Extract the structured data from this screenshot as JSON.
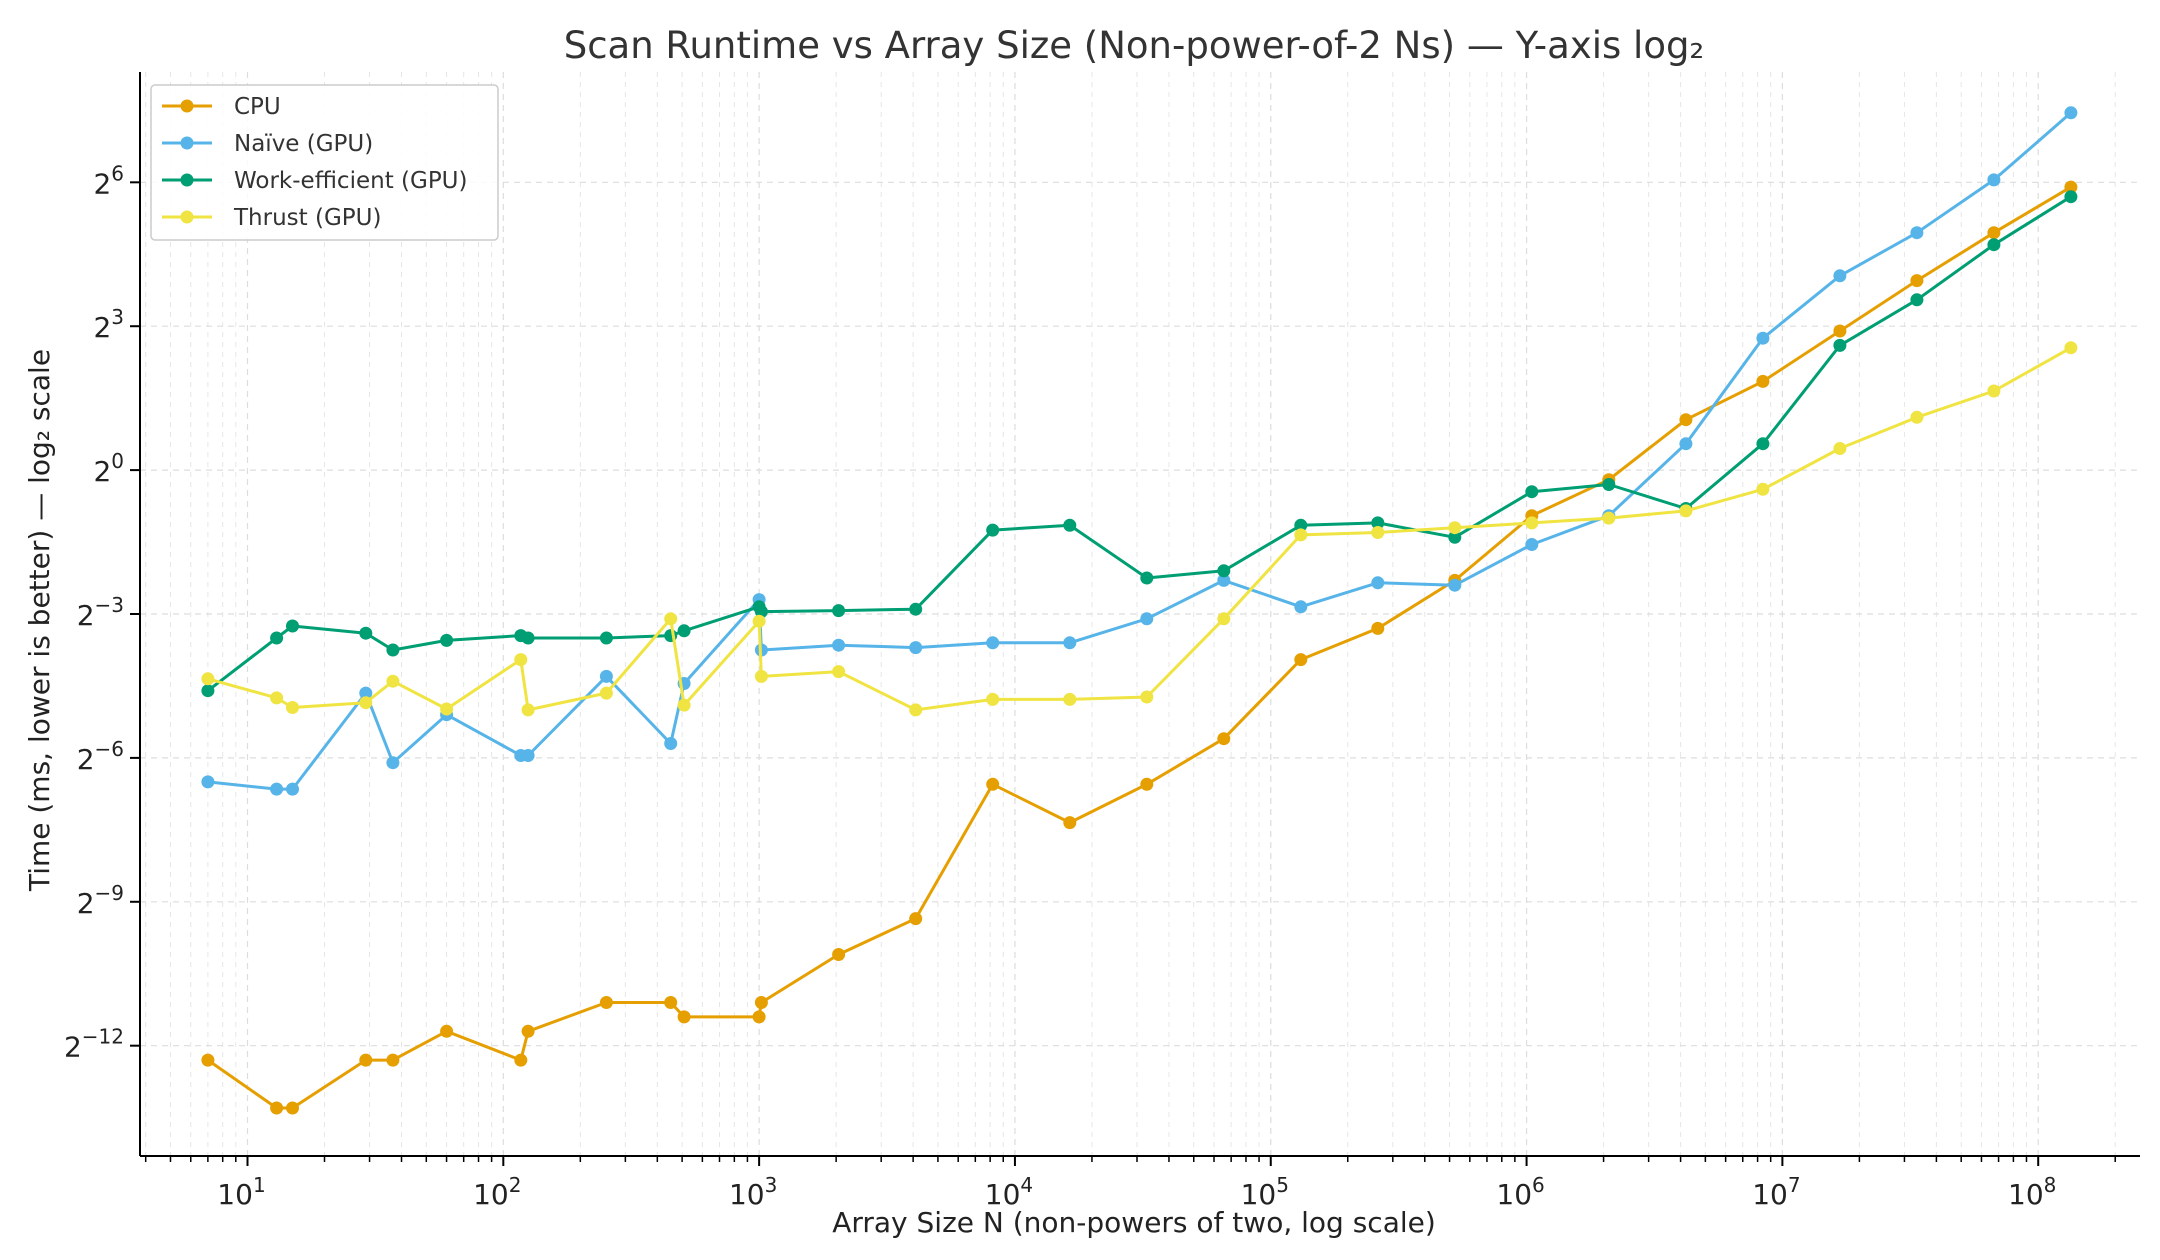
{
  "chart_data": {
    "type": "line",
    "title": "Scan Runtime vs Array Size (Non-power-of-2 Ns) — Y-axis log₂",
    "xlabel": "Array Size N (non-powers of two, log scale)",
    "ylabel": "Time (ms, lower is better) — log₂ scale",
    "x_scale": "log10",
    "y_scale": "log2",
    "xlim": [
      3.8,
      250000000
    ],
    "ylim_log2": [
      -14.3,
      8.3
    ],
    "x_ticks": [
      {
        "value": 10,
        "base": "10",
        "exp": "1"
      },
      {
        "value": 100,
        "base": "10",
        "exp": "2"
      },
      {
        "value": 1000,
        "base": "10",
        "exp": "3"
      },
      {
        "value": 10000,
        "base": "10",
        "exp": "4"
      },
      {
        "value": 100000,
        "base": "10",
        "exp": "5"
      },
      {
        "value": 1000000,
        "base": "10",
        "exp": "6"
      },
      {
        "value": 10000000,
        "base": "10",
        "exp": "7"
      },
      {
        "value": 100000000,
        "base": "10",
        "exp": "8"
      }
    ],
    "y_ticks": [
      {
        "log2": 6,
        "base": "2",
        "exp": "6"
      },
      {
        "log2": 3,
        "base": "2",
        "exp": "3"
      },
      {
        "log2": 0,
        "base": "2",
        "exp": "0"
      },
      {
        "log2": -3,
        "base": "2",
        "exp": "−3"
      },
      {
        "log2": -6,
        "base": "2",
        "exp": "−6"
      },
      {
        "log2": -9,
        "base": "2",
        "exp": "−9"
      },
      {
        "log2": -12,
        "base": "2",
        "exp": "−12"
      }
    ],
    "grid": true,
    "legend_position": "top-left",
    "x": [
      7,
      13,
      15,
      29,
      37,
      60,
      117,
      125,
      253,
      451,
      509,
      1000,
      1021,
      2045,
      4093,
      8189,
      16381,
      32765,
      65533,
      131069,
      262141,
      524285,
      1048573,
      2097149,
      4194301,
      8388605,
      16777213,
      33554429,
      67108861,
      134217725
    ],
    "series": [
      {
        "name": "CPU",
        "color": "#E69F00",
        "log2_values": [
          -12.3,
          -13.3,
          -13.3,
          -12.3,
          -12.3,
          -11.7,
          -12.3,
          -11.7,
          -11.1,
          -11.1,
          -11.4,
          -11.4,
          -11.1,
          -10.1,
          -9.35,
          -6.55,
          -7.35,
          -6.55,
          -5.6,
          -3.95,
          -3.3,
          -2.3,
          -0.95,
          -0.2,
          1.05,
          1.85,
          2.9,
          3.95,
          4.95,
          5.9
        ]
      },
      {
        "name": "Naïve (GPU)",
        "color": "#56B4E9",
        "log2_values": [
          -6.5,
          -6.65,
          -6.65,
          -4.65,
          -6.1,
          -5.1,
          -5.95,
          -5.95,
          -4.3,
          -5.7,
          -4.45,
          -2.7,
          -3.75,
          -3.65,
          -3.7,
          -3.6,
          -3.6,
          -3.1,
          -2.3,
          -2.85,
          -2.35,
          -2.4,
          -1.55,
          -0.95,
          0.55,
          2.75,
          4.05,
          4.95,
          6.05,
          7.45
        ]
      },
      {
        "name": "Work-efficient (GPU)",
        "color": "#009E73",
        "log2_values": [
          -4.6,
          -3.5,
          -3.25,
          -3.4,
          -3.75,
          -3.55,
          -3.45,
          -3.5,
          -3.5,
          -3.45,
          -3.35,
          -2.85,
          -2.95,
          -2.93,
          -2.9,
          -1.25,
          -1.15,
          -2.25,
          -2.1,
          -1.15,
          -1.1,
          -1.4,
          -0.45,
          -0.3,
          -0.8,
          0.55,
          2.6,
          3.55,
          4.7,
          5.7
        ]
      },
      {
        "name": "Thrust (GPU)",
        "color": "#F0E442",
        "log2_values": [
          -4.35,
          -4.75,
          -4.95,
          -4.85,
          -4.4,
          -4.98,
          -3.95,
          -5.0,
          -4.65,
          -3.1,
          -4.9,
          -3.15,
          -4.3,
          -4.2,
          -5.0,
          -4.78,
          -4.78,
          -4.73,
          -3.1,
          -1.35,
          -1.3,
          -1.2,
          -1.1,
          -1.0,
          -0.85,
          -0.4,
          0.45,
          1.1,
          1.65,
          2.55
        ]
      }
    ]
  }
}
